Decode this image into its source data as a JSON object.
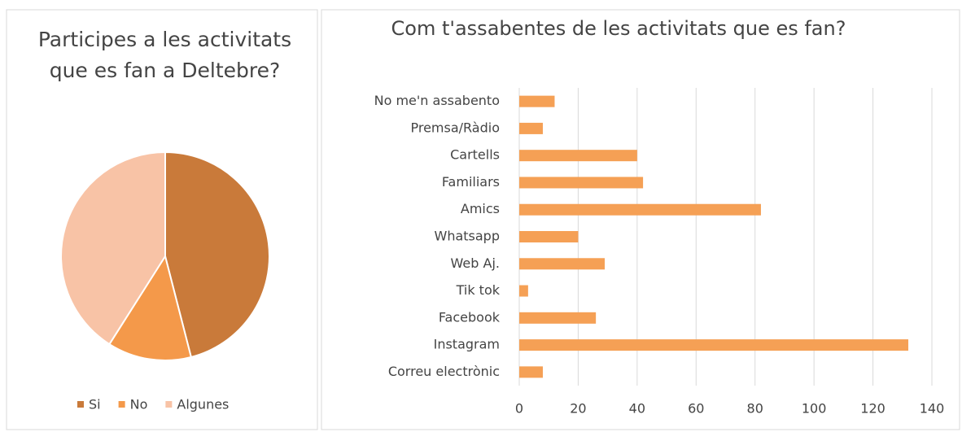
{
  "chart_data": [
    {
      "type": "pie",
      "title": "Participes a les activitats que es fan a Deltebre?",
      "categories": [
        "Si",
        "No",
        "Algunes"
      ],
      "values": [
        46,
        13,
        41
      ],
      "colors": [
        "#c97a3a",
        "#f4994a",
        "#f8c3a6"
      ],
      "legend": "bottom"
    },
    {
      "type": "hbar",
      "title": "Com t'assabentes de les activitats que es fan?",
      "categories": [
        "No me'n assabento",
        "Premsa/Ràdio",
        "Cartells",
        "Familiars",
        "Amics",
        "Whatsapp",
        "Web Aj.",
        "Tik tok",
        "Facebook",
        "Instagram",
        "Correu electrònic"
      ],
      "values": [
        12,
        8,
        40,
        42,
        82,
        20,
        29,
        3,
        26,
        132,
        8
      ],
      "color": "#f5a055",
      "xlim": [
        0,
        140
      ],
      "xticks": [
        0,
        20,
        40,
        60,
        80,
        100,
        120,
        140
      ],
      "grid": true
    }
  ]
}
